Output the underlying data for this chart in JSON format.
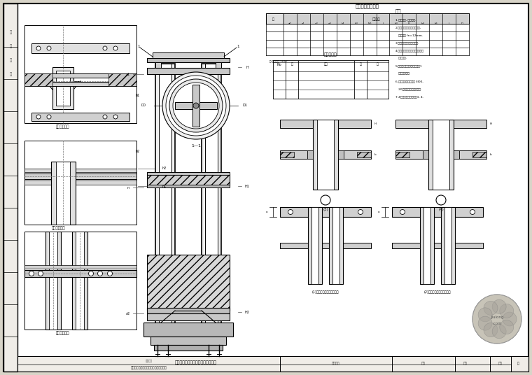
{
  "bg_color": "#ffffff",
  "line_color": "#000000",
  "border_color": "#000000",
  "page_bg": "#d8d4c8",
  "drawing_bg": "#ffffff"
}
